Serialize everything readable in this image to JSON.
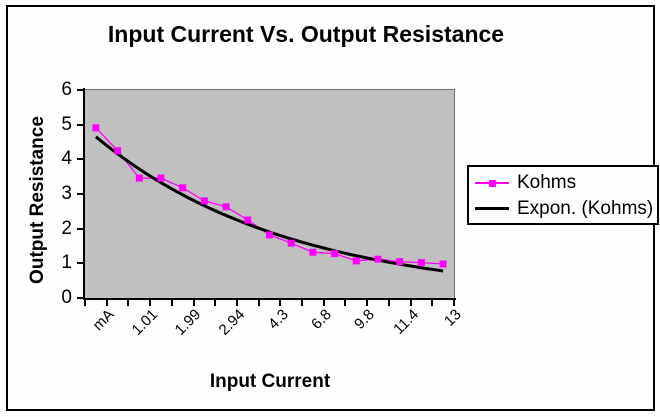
{
  "window": {
    "background": "#FDFFFD",
    "border_color": "#000000"
  },
  "chart_data": {
    "type": "line",
    "title": "Input Current Vs. Output Resistance",
    "xlabel": "Input Current",
    "ylabel": "Output Resistance",
    "categories": [
      "mA",
      "",
      "1.01",
      "",
      "1.99",
      "",
      "2.94",
      "",
      "4.3",
      "",
      "6.8",
      "",
      "9.8",
      "",
      "11.4",
      "",
      "13"
    ],
    "series": [
      {
        "name": "Kohms",
        "color": "#FF00FF",
        "marker": "square",
        "values": [
          4.91,
          4.25,
          3.46,
          3.46,
          3.18,
          2.8,
          2.63,
          2.25,
          1.82,
          1.58,
          1.32,
          1.28,
          1.07,
          1.12,
          1.05,
          1.02,
          0.98
        ]
      }
    ],
    "trendline": {
      "name": "Expon. (Kohms)",
      "type": "exponential",
      "color": "#000000",
      "start": 4.65,
      "end": 0.78
    },
    "ylim": [
      0,
      6
    ],
    "y_ticks": [
      0,
      1,
      2,
      3,
      4,
      5,
      6
    ],
    "grid": false,
    "plot_bg": "#C0C0C0",
    "legend_position": "right"
  }
}
